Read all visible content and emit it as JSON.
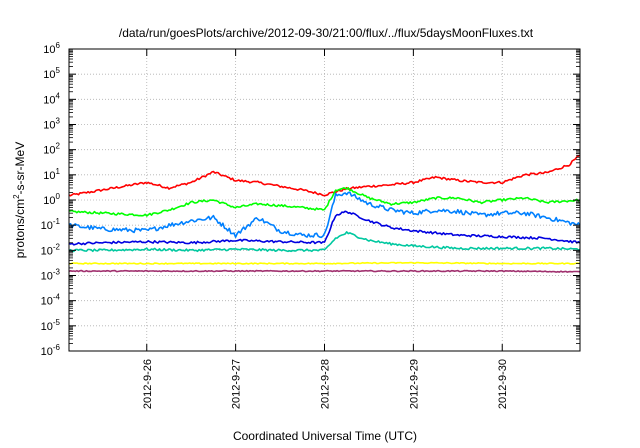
{
  "chart_data": {
    "type": "line",
    "title": "/data/run/goesPlots/archive/2012-09-30/21:00/flux/../flux/5daysMoonFluxes.txt",
    "xlabel": "Coordinated Universal Time (UTC)",
    "ylabel": "protons/cm²-s-sr-MeV",
    "ylabel_prefix": "protons/cm",
    "ylabel_sup": "2",
    "ylabel_suffix": "-s-sr-MeV",
    "y_scale": "log",
    "ylim": [
      1e-06,
      1000000
    ],
    "x_range_days": [
      "2012-09-25T03:00",
      "2012-09-30T21:00"
    ],
    "x_ticks": [
      "2012-9-26",
      "2012-9-27",
      "2012-9-28",
      "2012-9-29",
      "2012-9-30"
    ],
    "y_ticks": [
      {
        "base": "10",
        "exp": "-6"
      },
      {
        "base": "10",
        "exp": "-5"
      },
      {
        "base": "10",
        "exp": "-4"
      },
      {
        "base": "10",
        "exp": "-3"
      },
      {
        "base": "10",
        "exp": "-2"
      },
      {
        "base": "10",
        "exp": "-1"
      },
      {
        "base": "10",
        "exp": "0"
      },
      {
        "base": "10",
        "exp": "1"
      },
      {
        "base": "10",
        "exp": "2"
      },
      {
        "base": "10",
        "exp": "3"
      },
      {
        "base": "10",
        "exp": "4"
      },
      {
        "base": "10",
        "exp": "5"
      },
      {
        "base": "10",
        "exp": "6"
      }
    ],
    "grid": true,
    "legend": "none",
    "series": [
      {
        "color": "#ff0000",
        "x": [
          "2012-09-25T03:00",
          "2012-09-25T12:00",
          "2012-09-26T00:00",
          "2012-09-26T06:00",
          "2012-09-26T12:00",
          "2012-09-26T18:00",
          "2012-09-27T00:00",
          "2012-09-27T06:00",
          "2012-09-27T12:00",
          "2012-09-27T18:00",
          "2012-09-28T00:00",
          "2012-09-28T06:00",
          "2012-09-28T12:00",
          "2012-09-28T18:00",
          "2012-09-29T00:00",
          "2012-09-29T06:00",
          "2012-09-29T12:00",
          "2012-09-29T18:00",
          "2012-09-30T00:00",
          "2012-09-30T06:00",
          "2012-09-30T12:00",
          "2012-09-30T18:00",
          "2012-09-30T21:00"
        ],
        "y": [
          1.5,
          2.5,
          5,
          3,
          5,
          13,
          6,
          5,
          3.5,
          2.5,
          1.6,
          2.8,
          3.5,
          4,
          5,
          8,
          6,
          5,
          5,
          10,
          12,
          25,
          60
        ]
      },
      {
        "color": "#00ff00",
        "x": [
          "2012-09-25T03:00",
          "2012-09-25T12:00",
          "2012-09-26T00:00",
          "2012-09-26T06:00",
          "2012-09-26T12:00",
          "2012-09-26T18:00",
          "2012-09-27T00:00",
          "2012-09-27T06:00",
          "2012-09-27T12:00",
          "2012-09-27T18:00",
          "2012-09-28T00:00",
          "2012-09-28T03:00",
          "2012-09-28T06:00",
          "2012-09-28T12:00",
          "2012-09-28T18:00",
          "2012-09-29T00:00",
          "2012-09-29T06:00",
          "2012-09-29T12:00",
          "2012-09-29T18:00",
          "2012-09-30T00:00",
          "2012-09-30T06:00",
          "2012-09-30T12:00",
          "2012-09-30T21:00"
        ],
        "y": [
          0.35,
          0.3,
          0.25,
          0.4,
          0.8,
          1,
          0.5,
          0.7,
          0.6,
          0.5,
          0.4,
          2.5,
          3,
          1.2,
          0.7,
          0.8,
          1.2,
          1.2,
          0.8,
          1,
          1.2,
          0.8,
          1
        ]
      },
      {
        "color": "#0080ff",
        "x": [
          "2012-09-25T03:00",
          "2012-09-25T12:00",
          "2012-09-26T00:00",
          "2012-09-26T06:00",
          "2012-09-26T12:00",
          "2012-09-26T18:00",
          "2012-09-27T00:00",
          "2012-09-27T06:00",
          "2012-09-27T12:00",
          "2012-09-27T18:00",
          "2012-09-28T00:00",
          "2012-09-28T03:00",
          "2012-09-28T06:00",
          "2012-09-28T12:00",
          "2012-09-28T18:00",
          "2012-09-29T00:00",
          "2012-09-29T06:00",
          "2012-09-29T12:00",
          "2012-09-29T18:00",
          "2012-09-30T00:00",
          "2012-09-30T06:00",
          "2012-09-30T12:00",
          "2012-09-30T21:00"
        ],
        "y": [
          0.1,
          0.07,
          0.06,
          0.1,
          0.15,
          0.2,
          0.04,
          0.2,
          0.06,
          0.04,
          0.04,
          1.5,
          2,
          0.7,
          0.4,
          0.3,
          0.4,
          0.35,
          0.25,
          0.3,
          0.3,
          0.2,
          0.1
        ]
      },
      {
        "color": "#0000e0",
        "x": [
          "2012-09-25T03:00",
          "2012-09-25T12:00",
          "2012-09-26T00:00",
          "2012-09-26T12:00",
          "2012-09-27T00:00",
          "2012-09-27T12:00",
          "2012-09-28T00:00",
          "2012-09-28T03:00",
          "2012-09-28T06:00",
          "2012-09-28T12:00",
          "2012-09-28T18:00",
          "2012-09-29T00:00",
          "2012-09-29T12:00",
          "2012-09-30T00:00",
          "2012-09-30T12:00",
          "2012-09-30T21:00"
        ],
        "y": [
          0.018,
          0.02,
          0.022,
          0.02,
          0.025,
          0.022,
          0.02,
          0.25,
          0.35,
          0.15,
          0.08,
          0.06,
          0.04,
          0.035,
          0.03,
          0.02
        ]
      },
      {
        "color": "#00c8a0",
        "x": [
          "2012-09-25T03:00",
          "2012-09-25T12:00",
          "2012-09-26T00:00",
          "2012-09-26T12:00",
          "2012-09-27T00:00",
          "2012-09-27T12:00",
          "2012-09-28T00:00",
          "2012-09-28T03:00",
          "2012-09-28T06:00",
          "2012-09-28T12:00",
          "2012-09-28T18:00",
          "2012-09-29T00:00",
          "2012-09-29T12:00",
          "2012-09-30T00:00",
          "2012-09-30T12:00",
          "2012-09-30T21:00"
        ],
        "y": [
          0.01,
          0.01,
          0.011,
          0.01,
          0.011,
          0.01,
          0.01,
          0.03,
          0.05,
          0.025,
          0.018,
          0.015,
          0.012,
          0.012,
          0.012,
          0.011
        ]
      },
      {
        "color": "#ffff00",
        "x": [
          "2012-09-25T03:00",
          "2012-09-26T00:00",
          "2012-09-27T00:00",
          "2012-09-28T00:00",
          "2012-09-29T00:00",
          "2012-09-30T00:00",
          "2012-09-30T21:00"
        ],
        "y": [
          0.003,
          0.003,
          0.003,
          0.003,
          0.0032,
          0.003,
          0.003
        ]
      },
      {
        "color": "#a0306e",
        "x": [
          "2012-09-25T03:00",
          "2012-09-26T00:00",
          "2012-09-27T00:00",
          "2012-09-28T00:00",
          "2012-09-29T00:00",
          "2012-09-30T00:00",
          "2012-09-30T21:00"
        ],
        "y": [
          0.0015,
          0.0015,
          0.0015,
          0.0015,
          0.0015,
          0.0015,
          0.0014
        ]
      }
    ]
  }
}
